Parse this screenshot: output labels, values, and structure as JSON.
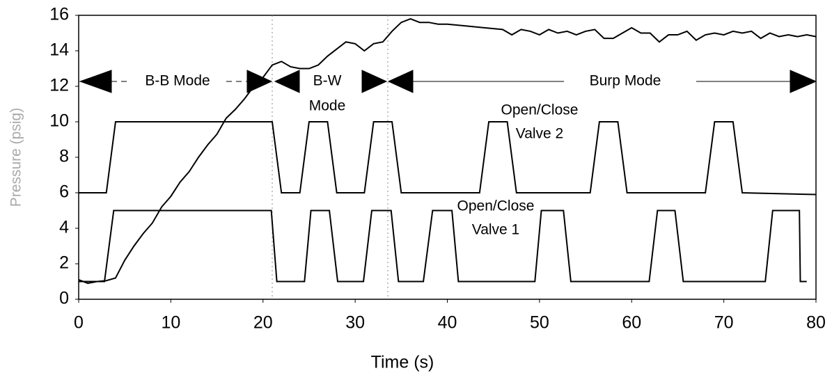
{
  "chart_data": {
    "type": "line",
    "xlabel": "Time (s)",
    "ylabel": "Pressure (psig)",
    "xlim": [
      0,
      80
    ],
    "xticks": [
      0,
      10,
      20,
      30,
      40,
      50,
      60,
      70,
      80
    ],
    "ylim": [
      0,
      16
    ],
    "yticks": [
      0,
      2,
      4,
      6,
      8,
      10,
      12,
      14,
      16
    ],
    "grid": false,
    "annotations": [
      [
        "B-B Mode"
      ],
      [
        "B-W",
        "Mode"
      ],
      [
        "Burp Mode"
      ],
      [
        "Open/Close",
        "Valve 2"
      ],
      [
        "Open/Close",
        "Valve 1"
      ]
    ],
    "series": [
      {
        "color": "#000000",
        "x": [
          0,
          1,
          2,
          3,
          4,
          5,
          6,
          7,
          8,
          9,
          10,
          11,
          12,
          13,
          14,
          15,
          16,
          17,
          18,
          19,
          20,
          21,
          22,
          23,
          24,
          25,
          26,
          27,
          28,
          29,
          30,
          31,
          32,
          33,
          34,
          35,
          36,
          37,
          38,
          39,
          40,
          42,
          44,
          46,
          47,
          48,
          49,
          50,
          51,
          52,
          53,
          54,
          55,
          56,
          57,
          58,
          59,
          60,
          61,
          62,
          63,
          64,
          65,
          66,
          67,
          68,
          69,
          70,
          71,
          72,
          73,
          74,
          75,
          76,
          77,
          78,
          79,
          80
        ],
        "values": [
          1.1,
          0.9,
          1.0,
          1.05,
          1.2,
          2.2,
          3.0,
          3.7,
          4.3,
          5.2,
          5.8,
          6.6,
          7.2,
          8.0,
          8.7,
          9.3,
          10.2,
          10.7,
          11.3,
          12.0,
          12.5,
          13.2,
          13.4,
          13.1,
          13.0,
          13.0,
          13.2,
          13.7,
          14.1,
          14.5,
          14.4,
          14.0,
          14.4,
          14.5,
          15.1,
          15.6,
          15.8,
          15.6,
          15.6,
          15.5,
          15.5,
          15.4,
          15.3,
          15.2,
          14.9,
          15.2,
          15.1,
          14.9,
          15.2,
          15.0,
          15.1,
          14.9,
          15.1,
          15.2,
          14.7,
          14.7,
          15.0,
          15.3,
          15.0,
          15.0,
          14.5,
          14.9,
          14.9,
          15.1,
          14.6,
          14.9,
          15.0,
          14.9,
          15.1,
          15.0,
          15.1,
          14.7,
          15.0,
          14.8,
          14.9,
          14.8,
          14.9,
          14.8
        ]
      },
      {
        "color": "#000000",
        "x": [
          0,
          3,
          4,
          21,
          22,
          24,
          25,
          27,
          28,
          31,
          32,
          34,
          35,
          43.5,
          44.5,
          46.5,
          47.5,
          55.5,
          56.5,
          58.5,
          59.5,
          68,
          69,
          71,
          72,
          80
        ],
        "values": [
          6,
          6,
          10,
          10,
          6,
          6,
          10,
          10,
          6,
          6,
          10,
          10,
          6,
          6,
          10,
          10,
          6,
          6,
          10,
          10,
          6,
          6,
          10,
          10,
          6,
          5.9
        ]
      },
      {
        "color": "#000000",
        "x": [
          0,
          2.8,
          3.8,
          20.9,
          21.5,
          24.5,
          25.2,
          27.2,
          28.1,
          30.9,
          31.8,
          33.9,
          34.7,
          37.4,
          38.4,
          40.5,
          41.2,
          49.5,
          50.2,
          52.6,
          53.4,
          61.9,
          62.8,
          64.7,
          65.6,
          74.5,
          75.3,
          78.2,
          78.3,
          79
        ],
        "values": [
          1,
          1,
          5,
          5,
          1,
          1,
          5,
          5,
          1,
          1,
          5,
          5,
          1,
          1,
          5,
          5,
          1,
          1,
          5,
          5,
          1,
          1,
          5,
          5,
          1,
          1,
          5,
          5,
          1,
          1
        ]
      }
    ]
  }
}
